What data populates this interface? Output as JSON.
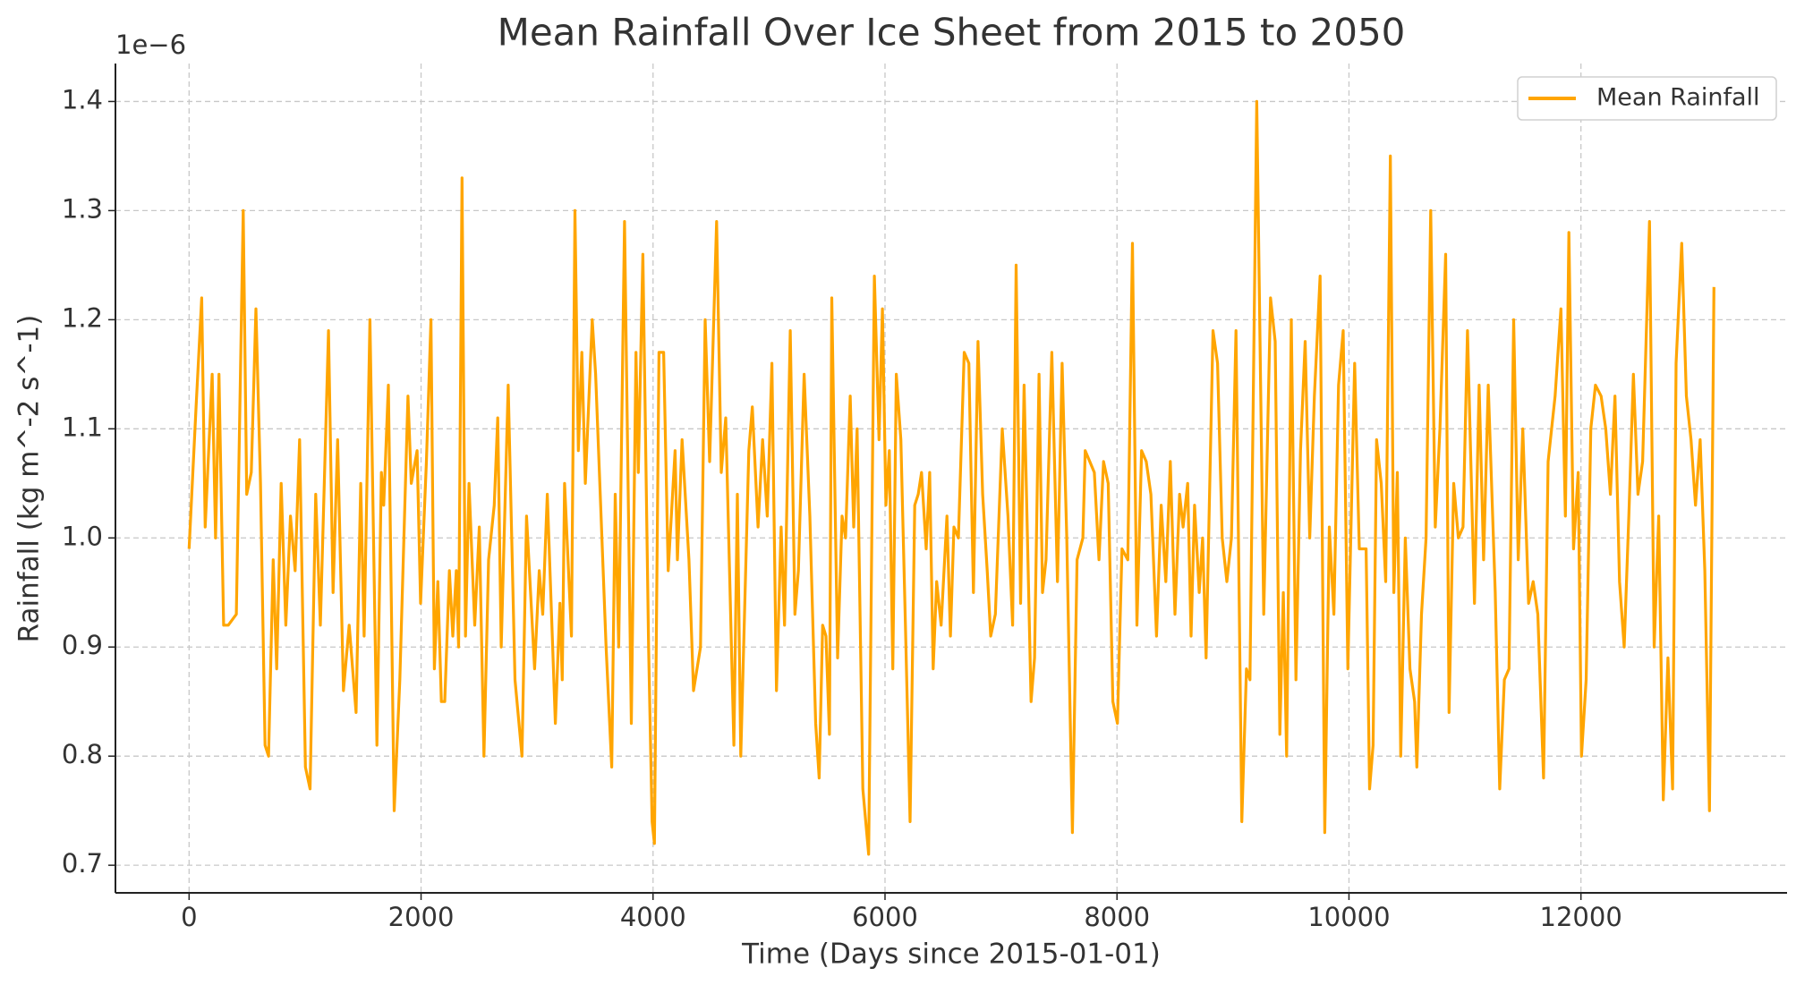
{
  "chart_data": {
    "type": "line",
    "title": "Mean Rainfall Over Ice Sheet from 2015 to 2050",
    "xlabel": "Time (Days since 2015-01-01)",
    "ylabel": "Rainfall (kg m^-2 s^-1)",
    "y_offset_label": "1e−6",
    "x": [
      0,
      60,
      109,
      139,
      199,
      228,
      258,
      298,
      338,
      407,
      467,
      497,
      536,
      576,
      616,
      655,
      685,
      725,
      755,
      794,
      834,
      874,
      914,
      953,
      1003,
      1043,
      1092,
      1132,
      1202,
      1241,
      1281,
      1331,
      1380,
      1440,
      1480,
      1509,
      1559,
      1619,
      1658,
      1678,
      1718,
      1768,
      1817,
      1887,
      1916,
      1966,
      1996,
      2046,
      2085,
      2115,
      2145,
      2175,
      2204,
      2244,
      2274,
      2304,
      2324,
      2353,
      2383,
      2413,
      2463,
      2502,
      2542,
      2582,
      2631,
      2661,
      2691,
      2751,
      2810,
      2870,
      2909,
      2979,
      3019,
      3049,
      3088,
      3158,
      3197,
      3217,
      3237,
      3297,
      3327,
      3356,
      3386,
      3416,
      3476,
      3505,
      3595,
      3644,
      3674,
      3704,
      3754,
      3813,
      3853,
      3873,
      3912,
      3962,
      3992,
      4012,
      4051,
      4091,
      4131,
      4190,
      4210,
      4250,
      4310,
      4349,
      4409,
      4449,
      4488,
      4548,
      4588,
      4627,
      4697,
      4727,
      4756,
      4826,
      4856,
      4905,
      4945,
      4985,
      5025,
      5064,
      5104,
      5134,
      5183,
      5223,
      5253,
      5303,
      5352,
      5402,
      5432,
      5462,
      5491,
      5521,
      5541,
      5591,
      5630,
      5660,
      5700,
      5730,
      5759,
      5809,
      5859,
      5908,
      5948,
      5978,
      6008,
      6037,
      6067,
      6097,
      6137,
      6176,
      6216,
      6256,
      6286,
      6315,
      6355,
      6385,
      6415,
      6445,
      6484,
      6534,
      6564,
      6594,
      6633,
      6683,
      6723,
      6762,
      6802,
      6842,
      6881,
      6911,
      6951,
      7011,
      7060,
      7100,
      7130,
      7169,
      7199,
      7259,
      7289,
      7328,
      7358,
      7388,
      7438,
      7487,
      7527,
      7567,
      7616,
      7656,
      7706,
      7726,
      7765,
      7805,
      7845,
      7884,
      7924,
      7964,
      8004,
      8043,
      8093,
      8133,
      8172,
      8212,
      8252,
      8292,
      8341,
      8381,
      8421,
      8460,
      8500,
      8540,
      8570,
      8609,
      8639,
      8669,
      8709,
      8738,
      8768,
      8828,
      8867,
      8907,
      8947,
      8987,
      9026,
      9076,
      9116,
      9146,
      9205,
      9265,
      9324,
      9364,
      9404,
      9434,
      9463,
      9503,
      9543,
      9582,
      9622,
      9662,
      9702,
      9751,
      9791,
      9831,
      9870,
      9910,
      9950,
      9990,
      10049,
      10089,
      10148,
      10178,
      10208,
      10238,
      10278,
      10317,
      10357,
      10387,
      10417,
      10446,
      10486,
      10526,
      10566,
      10585,
      10625,
      10665,
      10705,
      10744,
      10784,
      10834,
      10863,
      10903,
      10943,
      10983,
      11022,
      11082,
      11122,
      11161,
      11201,
      11261,
      11300,
      11340,
      11380,
      11420,
      11459,
      11499,
      11549,
      11588,
      11628,
      11678,
      11717,
      11777,
      11827,
      11866,
      11896,
      11936,
      11976,
      12005,
      12045,
      12085,
      12125,
      12174,
      12214,
      12254,
      12293,
      12333,
      12373,
      12413,
      12452,
      12492,
      12532,
      12591,
      12631,
      12671,
      12710,
      12750,
      12790,
      12820,
      12869,
      12909,
      12949,
      12988,
      13028,
      13068,
      13108,
      13147
    ],
    "series": [
      {
        "name": "Mean Rainfall",
        "color": "#ffa500",
        "values": [
          0.99,
          1.12,
          1.22,
          1.01,
          1.15,
          1.0,
          1.15,
          0.92,
          0.92,
          0.93,
          1.3,
          1.04,
          1.06,
          1.21,
          1.05,
          0.81,
          0.8,
          0.98,
          0.88,
          1.05,
          0.92,
          1.02,
          0.97,
          1.09,
          0.79,
          0.77,
          1.04,
          0.92,
          1.19,
          0.95,
          1.09,
          0.86,
          0.92,
          0.84,
          1.05,
          0.91,
          1.2,
          0.81,
          1.06,
          1.03,
          1.14,
          0.75,
          0.87,
          1.13,
          1.05,
          1.08,
          0.94,
          1.07,
          1.2,
          0.88,
          0.96,
          0.85,
          0.85,
          0.97,
          0.91,
          0.97,
          0.9,
          1.33,
          0.91,
          1.05,
          0.92,
          1.01,
          0.8,
          0.98,
          1.03,
          1.11,
          0.9,
          1.14,
          0.87,
          0.8,
          1.02,
          0.88,
          0.97,
          0.93,
          1.04,
          0.83,
          0.94,
          0.87,
          1.05,
          0.91,
          1.3,
          1.08,
          1.17,
          1.05,
          1.2,
          1.15,
          0.9,
          0.79,
          1.04,
          0.9,
          1.29,
          0.83,
          1.17,
          1.06,
          1.26,
          0.9,
          0.74,
          0.72,
          1.17,
          1.17,
          0.97,
          1.08,
          0.98,
          1.09,
          0.98,
          0.86,
          0.9,
          1.2,
          1.07,
          1.29,
          1.06,
          1.11,
          0.81,
          1.04,
          0.8,
          1.08,
          1.12,
          1.01,
          1.09,
          1.02,
          1.16,
          0.86,
          1.01,
          0.92,
          1.19,
          0.93,
          0.97,
          1.15,
          1.02,
          0.83,
          0.78,
          0.92,
          0.91,
          0.82,
          1.22,
          0.89,
          1.02,
          1.0,
          1.13,
          1.01,
          1.1,
          0.77,
          0.71,
          1.24,
          1.09,
          1.21,
          1.03,
          1.08,
          0.88,
          1.15,
          1.09,
          0.92,
          0.74,
          1.03,
          1.04,
          1.06,
          0.99,
          1.06,
          0.88,
          0.96,
          0.92,
          1.02,
          0.91,
          1.01,
          1.0,
          1.17,
          1.16,
          0.95,
          1.18,
          1.04,
          0.97,
          0.91,
          0.93,
          1.1,
          1.02,
          0.92,
          1.25,
          0.94,
          1.14,
          0.85,
          0.89,
          1.15,
          0.95,
          0.98,
          1.17,
          0.96,
          1.16,
          1.0,
          0.73,
          0.98,
          1.0,
          1.08,
          1.07,
          1.06,
          0.98,
          1.07,
          1.05,
          0.85,
          0.83,
          0.99,
          0.98,
          1.27,
          0.92,
          1.08,
          1.07,
          1.04,
          0.91,
          1.03,
          0.96,
          1.07,
          0.93,
          1.04,
          1.01,
          1.05,
          0.91,
          1.03,
          0.95,
          1.0,
          0.89,
          1.19,
          1.16,
          1.0,
          0.96,
          1.0,
          1.19,
          0.74,
          0.88,
          0.87,
          1.4,
          0.93,
          1.22,
          1.18,
          0.82,
          0.95,
          0.8,
          1.2,
          0.87,
          1.08,
          1.18,
          1.0,
          1.13,
          1.24,
          0.73,
          1.01,
          0.93,
          1.14,
          1.19,
          0.88,
          1.16,
          0.99,
          0.99,
          0.77,
          0.81,
          1.09,
          1.05,
          0.96,
          1.35,
          0.95,
          1.06,
          0.8,
          1.0,
          0.88,
          0.85,
          0.79,
          0.93,
          1.0,
          1.3,
          1.01,
          1.1,
          1.26,
          0.84,
          1.05,
          1.0,
          1.01,
          1.19,
          0.94,
          1.14,
          0.98,
          1.14,
          0.95,
          0.77,
          0.87,
          0.88,
          1.2,
          0.98,
          1.1,
          0.94,
          0.96,
          0.93,
          0.78,
          1.07,
          1.13,
          1.21,
          1.02,
          1.28,
          0.99,
          1.06,
          0.8,
          0.87,
          1.1,
          1.14,
          1.13,
          1.1,
          1.04,
          1.13,
          0.96,
          0.9,
          1.02,
          1.15,
          1.04,
          1.07,
          1.29,
          0.9,
          1.02,
          0.76,
          0.89,
          0.77,
          1.16,
          1.27,
          1.13,
          1.09,
          1.03,
          1.09,
          0.97,
          0.75,
          1.23
        ]
      }
    ],
    "xlim": [
      -635,
      13777
    ],
    "ylim": [
      0.6747,
      1.4348
    ],
    "xticks": [
      0,
      2000,
      4000,
      6000,
      8000,
      10000,
      12000
    ],
    "yticks": [
      0.7,
      0.8,
      0.9,
      {
        "value": 1,
        "label": "1.0"
      },
      1.1,
      1.2,
      1.3,
      1.4
    ],
    "grid": true,
    "legend": "upper right"
  }
}
